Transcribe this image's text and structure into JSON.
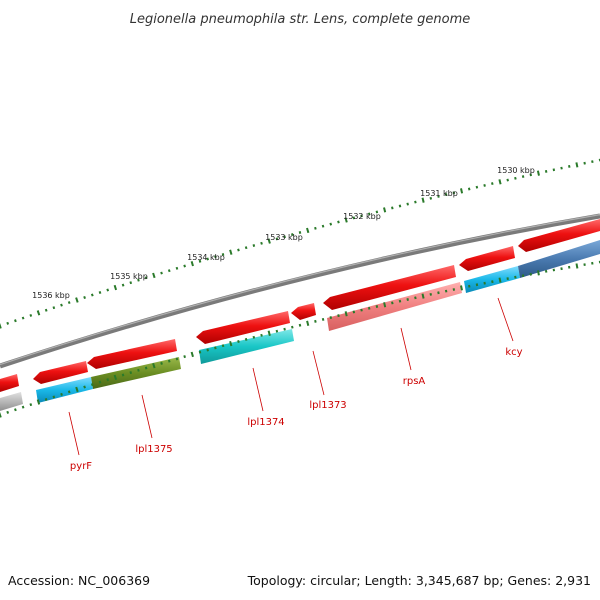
{
  "title": "Legionella pneumophila str. Lens, complete genome",
  "accession_text": "Accession: NC_006369",
  "topology_text": "Topology: circular; Length: 3,345,687 bp; Genes: 2,931",
  "colors": {
    "backbone": "#7a7a7a",
    "ticks": "#2a7a2a",
    "label": "#cc0000",
    "red": "#ee1111",
    "pink": "#f08080",
    "cyan": "#1ab8e8",
    "teal": "#19c6c6",
    "olive": "#6b8e23",
    "steel": "#4a7ab0",
    "grey": "#b8b8b8"
  },
  "kbp_labels": [
    "1530 kbp",
    "1531 kbp",
    "1532 kbp",
    "1533 kbp",
    "1534 kbp",
    "1535 kbp",
    "1536 kbp"
  ],
  "gene_labels": [
    "kcy",
    "rpsA",
    "lpl1373",
    "lpl1374",
    "lpl1375",
    "pyrF"
  ]
}
